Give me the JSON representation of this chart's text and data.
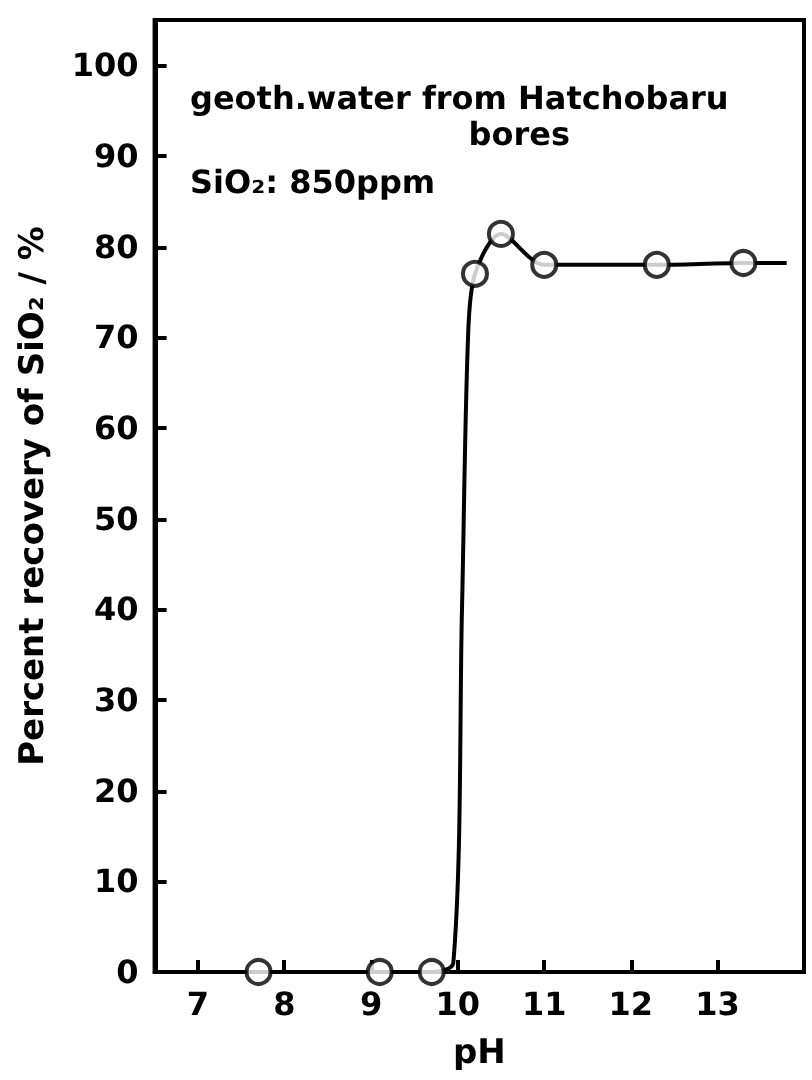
{
  "chart_data": {
    "type": "line",
    "xlabel": "pH",
    "ylabel": "Percent recovery of SiO₂ / %",
    "annotations": [
      "geoth.water from Hatchobaru\nbores",
      "SiO₂: 850ppm"
    ],
    "xlim": [
      6.5,
      14
    ],
    "xticks": [
      7,
      8,
      9,
      10,
      11,
      12,
      13
    ],
    "ylim": [
      0,
      105
    ],
    "yticks": [
      0,
      10,
      20,
      30,
      40,
      50,
      60,
      70,
      80,
      90,
      100
    ],
    "grid": false,
    "series": [
      {
        "type": "line",
        "color": "#000000",
        "marker": "none",
        "x": [
          6.5,
          7.7,
          9.1,
          9.7,
          9.95,
          10.05,
          10.12,
          10.2,
          10.5,
          11.0,
          12.3,
          13.3,
          13.8
        ],
        "values": [
          0,
          0,
          0,
          0,
          1,
          40,
          70,
          77,
          81.4,
          78,
          78,
          78.2,
          78.2
        ]
      },
      {
        "type": "scatter",
        "color": "#000000",
        "marker": "circle",
        "x": [
          7.7,
          9.1,
          9.7,
          10.2,
          10.5,
          11.0,
          12.3,
          13.3
        ],
        "values": [
          0,
          0,
          0,
          77,
          81.4,
          78,
          78,
          78.2
        ]
      }
    ]
  }
}
